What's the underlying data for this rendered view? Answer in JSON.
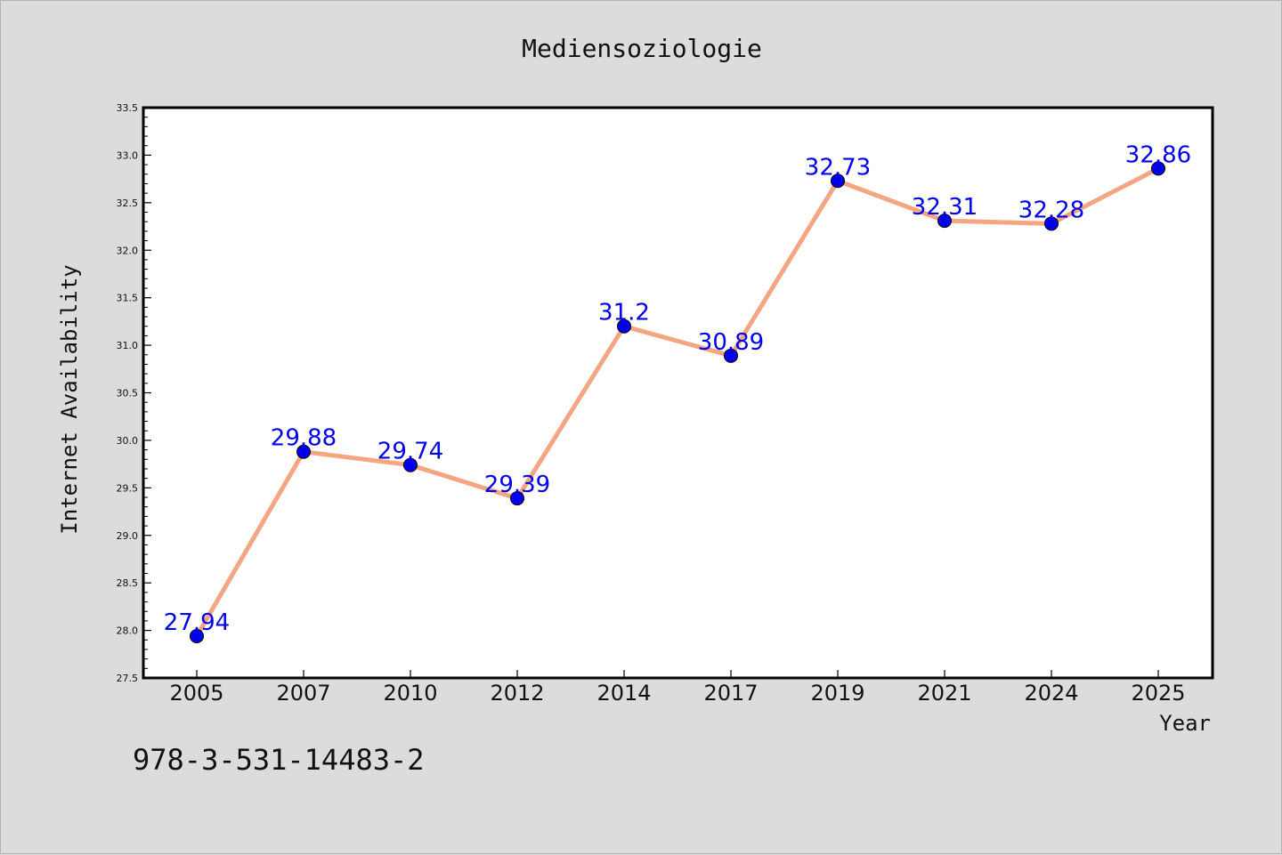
{
  "chart_data": {
    "type": "line",
    "title": "Mediensoziologie",
    "xlabel": "Year",
    "ylabel": "Internet Availability",
    "categories": [
      "2005",
      "2007",
      "2010",
      "2012",
      "2014",
      "2017",
      "2019",
      "2021",
      "2024",
      "2025"
    ],
    "series": [
      {
        "values": [
          27.94,
          29.88,
          29.74,
          29.39,
          31.2,
          30.89,
          32.73,
          32.31,
          32.28,
          32.86
        ],
        "labels": [
          "27.94",
          "29.88",
          "29.74",
          "29.39",
          "31.2",
          "30.89",
          "32.73",
          "32.31",
          "32.28",
          "32.86"
        ],
        "line_color": "#f4a582",
        "marker_color": "#0000ee"
      }
    ],
    "ylim": [
      27.5,
      33.5
    ],
    "yticks": [
      "27.5",
      "28.0",
      "28.5",
      "29.0",
      "29.5",
      "30.0",
      "30.5",
      "31.0",
      "31.5",
      "32.0",
      "32.5",
      "33.0",
      "33.5"
    ],
    "grid": false,
    "legend": "none",
    "background": "#dcdcdc",
    "plot_background": "#ffffff"
  },
  "footer": {
    "isbn": "978-3-531-14483-2"
  }
}
